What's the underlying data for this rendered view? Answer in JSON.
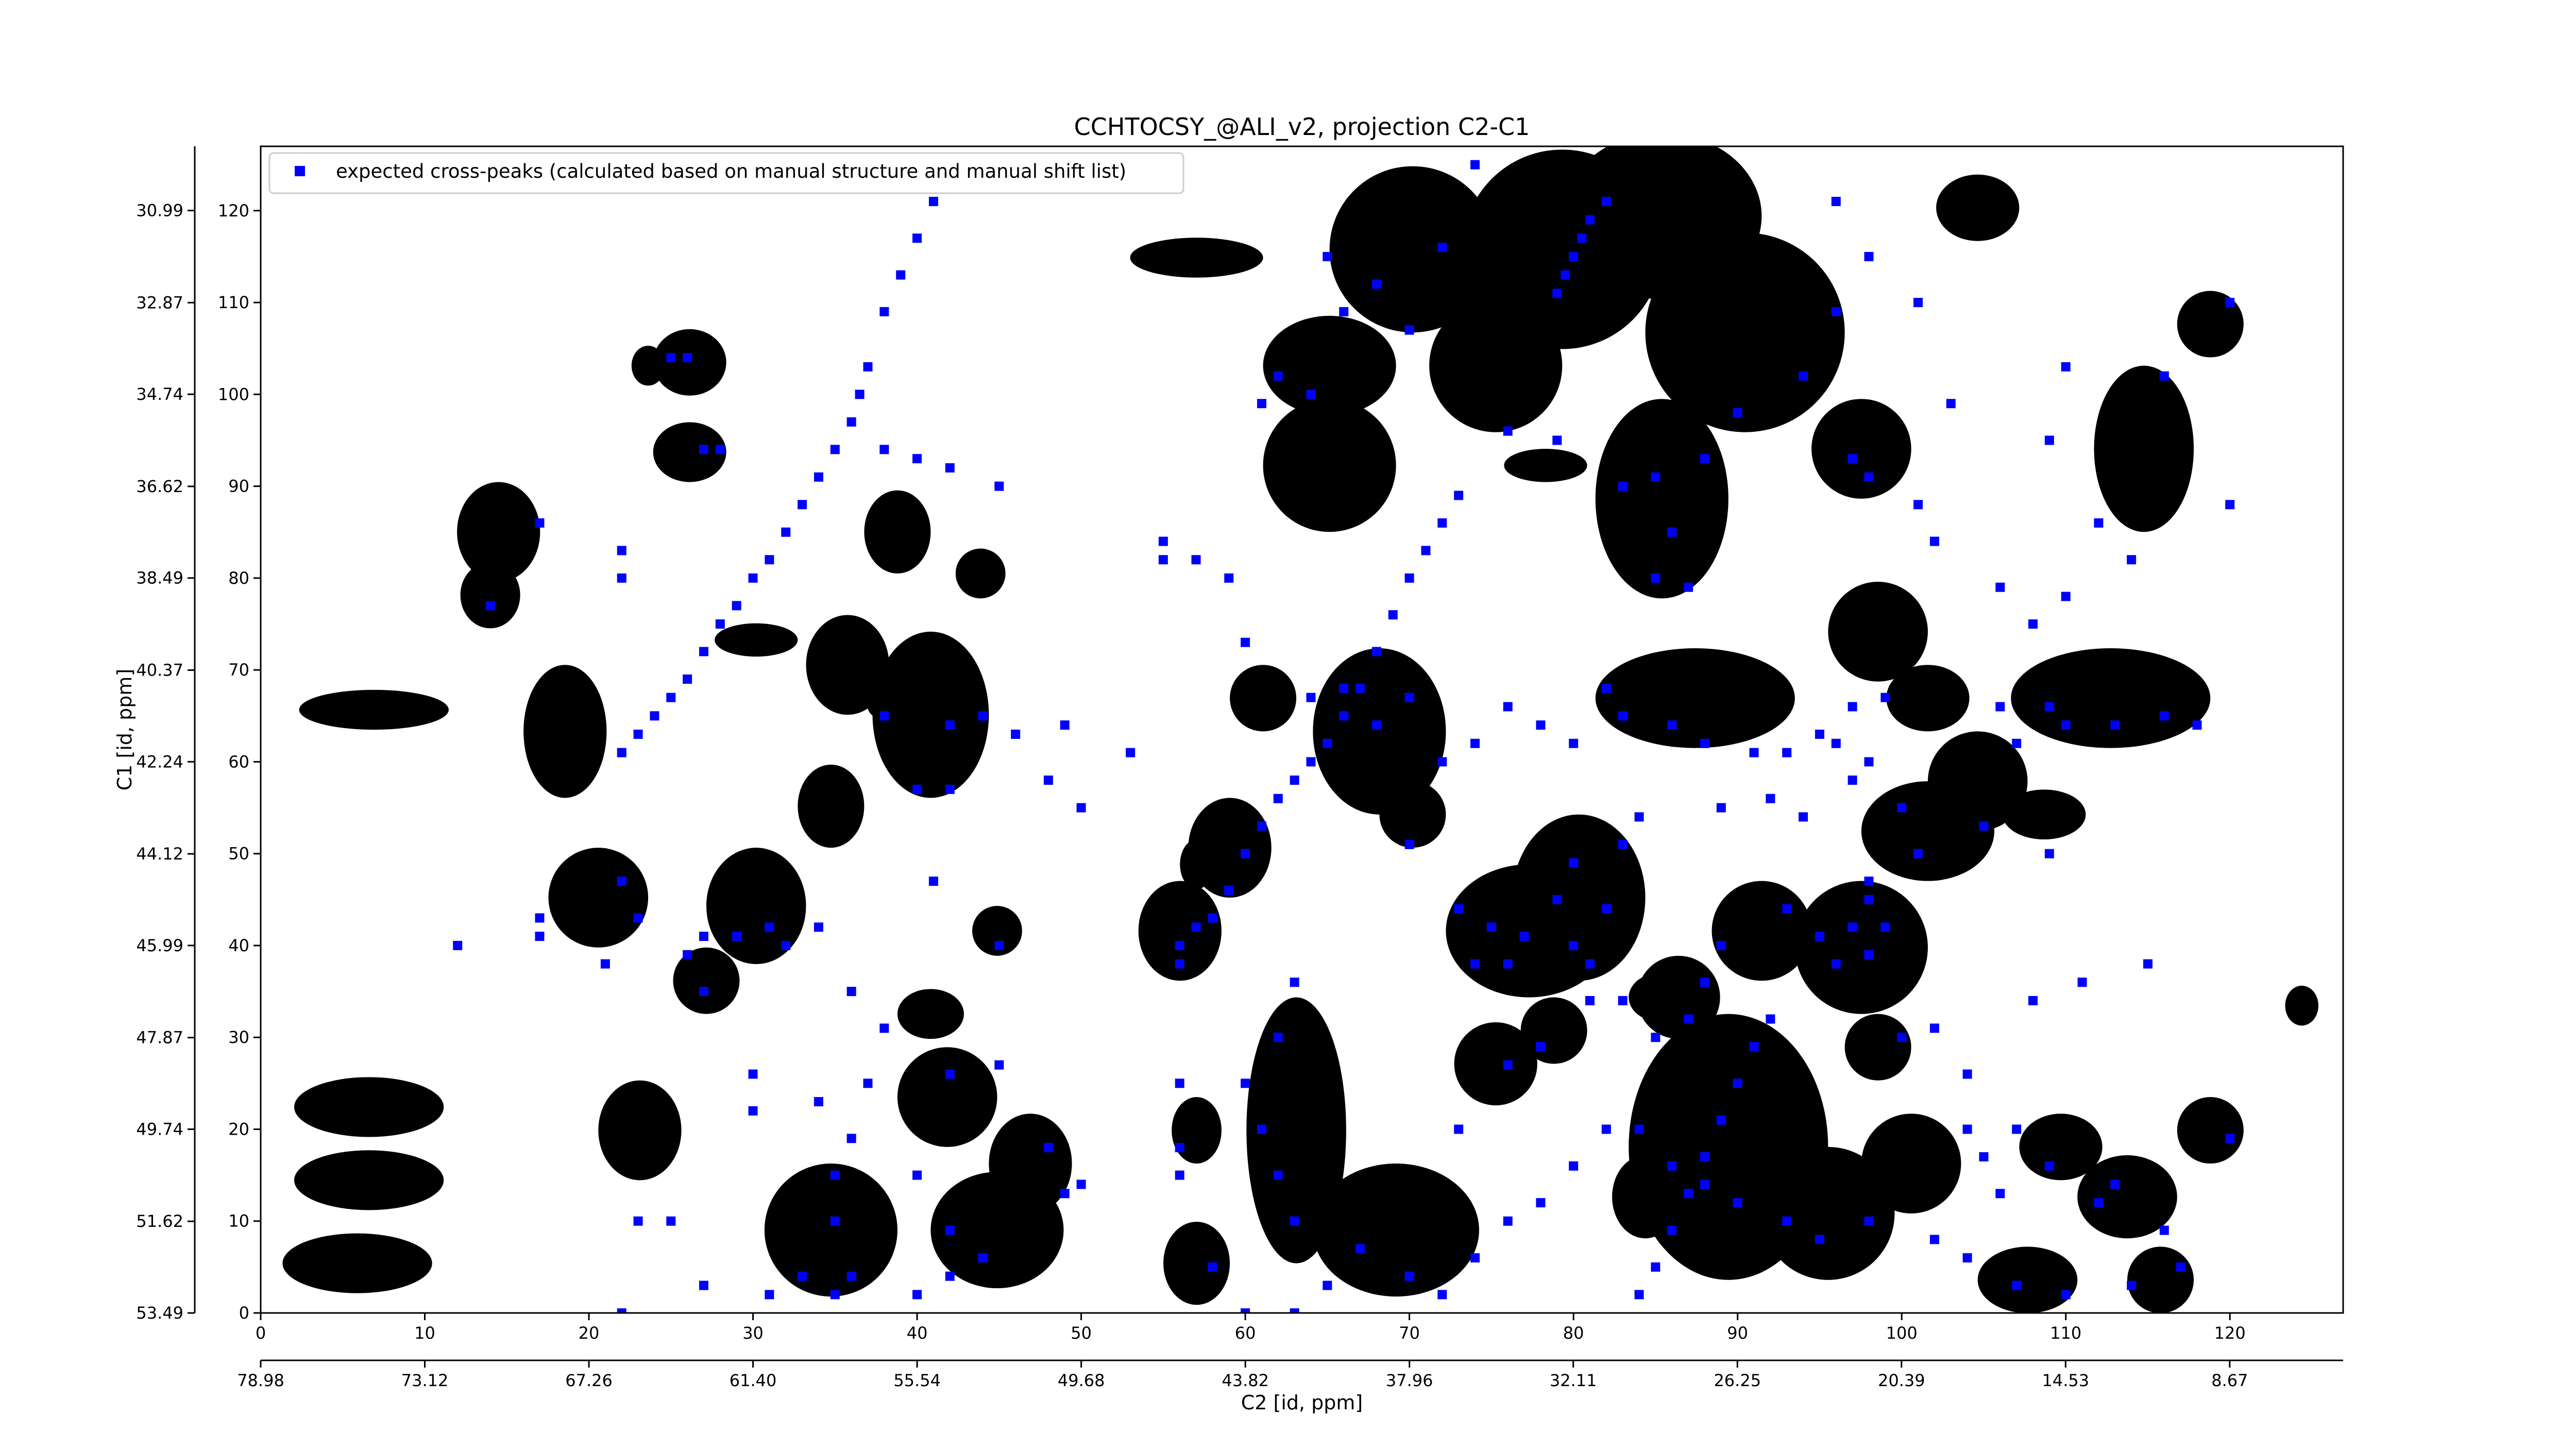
{
  "chart_data": {
    "type": "scatter",
    "title": "CCHTOCSY_@ALI_v2, projection C2-C1",
    "xlabel": "C2 [id, ppm]",
    "ylabel": "C1 [id, ppm]",
    "xlim": [
      0,
      126.9
    ],
    "ylim": [
      0,
      127
    ],
    "xticks": [
      0,
      10,
      20,
      30,
      40,
      50,
      60,
      70,
      80,
      90,
      100,
      110,
      120
    ],
    "yticks": [
      0,
      10,
      20,
      30,
      40,
      50,
      60,
      70,
      80,
      90,
      100,
      110,
      120
    ],
    "x2lim": [
      78.98,
      4.62
    ],
    "x2ticks": [
      78.98,
      73.12,
      67.26,
      {
        "value": 61.4,
        "label": "61.40"
      },
      55.54,
      49.68,
      43.82,
      37.96,
      32.11,
      26.25,
      20.39,
      14.53,
      8.67
    ],
    "y2lim": [
      53.49,
      29.68
    ],
    "y2ticks": [
      53.49,
      51.62,
      49.74,
      47.87,
      45.99,
      44.12,
      42.24,
      40.37,
      38.49,
      36.62,
      34.74,
      32.87,
      30.99
    ],
    "legend": "upper left",
    "series": [
      {
        "name": "expected cross-peaks (calculated based on manual structure and manual shift list)",
        "color": "#0000ff",
        "x": [
          22,
          23,
          24,
          25,
          26,
          27,
          28,
          29,
          30,
          31,
          32,
          33,
          34,
          35,
          36,
          36.5,
          37,
          38,
          39,
          40,
          41,
          17,
          14,
          25,
          26,
          27,
          28,
          22,
          22,
          12,
          17,
          17,
          22,
          23,
          21,
          26,
          27,
          29,
          31,
          32,
          34,
          30,
          37,
          38,
          36,
          27,
          30,
          23,
          25,
          22,
          33,
          42,
          45,
          45,
          41,
          42,
          40,
          38,
          42,
          44,
          46,
          48,
          50,
          38,
          40,
          42,
          45,
          53,
          49,
          56,
          59,
          48,
          49,
          50,
          35,
          35,
          36,
          40,
          42,
          44,
          42,
          40,
          36,
          35,
          31,
          34,
          27,
          56,
          57,
          58,
          59,
          60,
          61,
          62,
          63,
          64,
          65,
          66,
          67,
          68,
          69,
          70,
          71,
          72,
          73,
          79,
          79.5,
          80,
          80.5,
          81,
          82,
          84,
          85,
          86,
          87,
          88,
          89,
          90,
          91,
          92,
          61,
          62,
          64,
          66,
          65,
          68,
          70,
          72,
          74,
          76,
          79,
          83,
          85,
          86,
          85,
          87,
          88,
          90,
          94,
          96,
          98,
          96,
          101,
          103,
          97,
          98,
          101,
          102,
          106,
          108,
          110,
          112,
          114,
          109,
          110,
          113,
          116,
          118,
          107,
          106,
          99,
          97,
          95,
          93,
          91,
          88,
          86,
          83,
          82,
          80,
          78,
          76,
          74,
          72,
          70,
          68,
          66,
          64,
          60,
          59,
          57,
          55,
          55,
          120,
          120,
          116,
          109,
          110,
          70,
          73,
          75,
          74,
          77,
          79,
          80,
          81,
          82,
          81,
          80,
          76,
          73,
          76,
          78,
          83,
          85,
          87,
          88,
          89,
          93,
          95,
          96,
          97,
          98,
          99,
          98,
          100,
          102,
          104,
          104,
          105,
          106,
          107,
          109,
          112,
          113,
          116,
          117,
          114,
          110,
          107,
          104,
          102,
          98,
          95,
          93,
          90,
          88,
          86,
          84,
          82,
          80,
          78,
          76,
          74,
          72,
          70,
          67,
          65,
          63,
          62,
          61,
          60,
          62,
          63,
          56,
          56,
          56,
          58,
          60,
          63,
          120,
          115,
          111,
          108,
          109,
          105,
          101,
          100,
          98,
          94,
          92,
          89,
          84,
          83,
          98,
          97,
          96
        ],
        "values": [
          61,
          63,
          65,
          67,
          69,
          72,
          75,
          77,
          80,
          82,
          85,
          88,
          91,
          94,
          97,
          100,
          103,
          109,
          113,
          117,
          121,
          86,
          77,
          104,
          104,
          94,
          94,
          83,
          80,
          40,
          43,
          41,
          47,
          43,
          38,
          39,
          41,
          41,
          42,
          40,
          42,
          26,
          25,
          31,
          35,
          35,
          22,
          10,
          10,
          0,
          4,
          26,
          27,
          40,
          47,
          57,
          57,
          65,
          64,
          65,
          63,
          58,
          55,
          94,
          93,
          92,
          90,
          61,
          64,
          38,
          46,
          18,
          13,
          14,
          15,
          10,
          19,
          15,
          9,
          6,
          4,
          2,
          4,
          2,
          2,
          23,
          3,
          40,
          42,
          43,
          46,
          50,
          53,
          56,
          58,
          60,
          62,
          65,
          68,
          72,
          76,
          80,
          83,
          86,
          89,
          111,
          113,
          115,
          117,
          119,
          121,
          2,
          5,
          9,
          13,
          17,
          21,
          25,
          29,
          32,
          99,
          102,
          100,
          109,
          115,
          112,
          107,
          116,
          125,
          96,
          95,
          90,
          91,
          85,
          80,
          79,
          93,
          98,
          102,
          109,
          115,
          121,
          110,
          99,
          93,
          91,
          88,
          84,
          79,
          75,
          78,
          86,
          82,
          66,
          64,
          64,
          65,
          64,
          62,
          66,
          67,
          66,
          63,
          61,
          61,
          62,
          64,
          65,
          68,
          62,
          64,
          66,
          62,
          60,
          67,
          64,
          68,
          67,
          73,
          80,
          82,
          82,
          84,
          88,
          110,
          102,
          95,
          103,
          51,
          44,
          42,
          38,
          41,
          45,
          40,
          38,
          44,
          34,
          49,
          38,
          20,
          27,
          29,
          34,
          30,
          32,
          36,
          40,
          44,
          41,
          38,
          42,
          45,
          42,
          39,
          30,
          31,
          26,
          20,
          17,
          13,
          20,
          16,
          12,
          14,
          9,
          5,
          3,
          2,
          3,
          6,
          8,
          10,
          8,
          10,
          12,
          14,
          16,
          20,
          20,
          16,
          12,
          10,
          6,
          2,
          4,
          7,
          3,
          10,
          15,
          20,
          25,
          30,
          36,
          25,
          18,
          15,
          5,
          0,
          0,
          19,
          38,
          36,
          34,
          50,
          53,
          50,
          55,
          47,
          54,
          56,
          55,
          54,
          51,
          60,
          58,
          62
        ]
      }
    ]
  }
}
